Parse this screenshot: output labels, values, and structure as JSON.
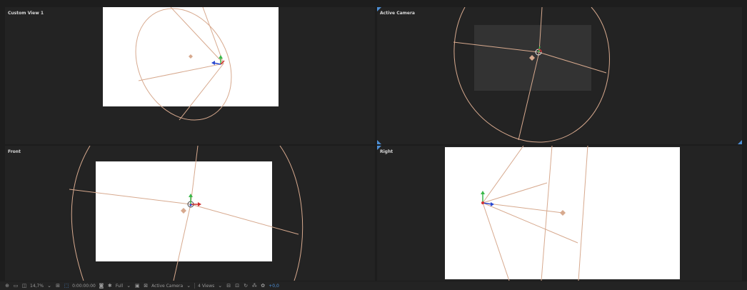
{
  "viewports": {
    "top_left": {
      "label": "Custom View 1"
    },
    "top_right": {
      "label": "Active Camera"
    },
    "bottom_left": {
      "label": "Front"
    },
    "bottom_right": {
      "label": "Right"
    }
  },
  "toolbar": {
    "zoom": "14,7%",
    "timecode": "0:00:00:00",
    "resolution": "Full",
    "camera": "Active Camera",
    "layout": "4 Views",
    "exposure": "+0,0"
  },
  "icons": [
    "magnifier-icon",
    "monitor-icon",
    "mask-icon",
    "chevron-down-icon",
    "snapshot-icon",
    "color-icon",
    "region-icon",
    "grid-icon",
    "3d-icon",
    "camera-icon",
    "reset-icon",
    "gear-icon"
  ]
}
